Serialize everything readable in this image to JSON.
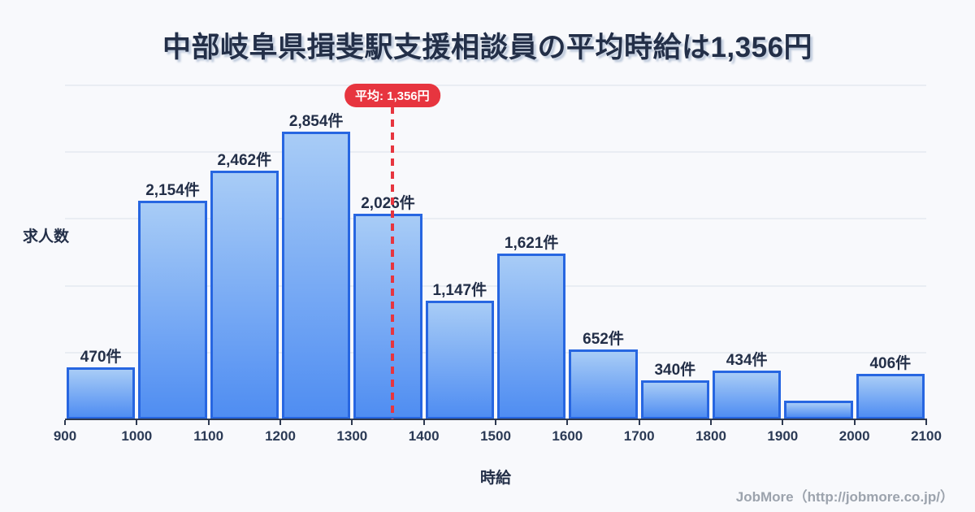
{
  "title": "中部岐阜県揖斐駅支援相談員の平均時給は1,356円",
  "chart_data": {
    "type": "bar",
    "title": "中部岐阜県揖斐駅支援相談員の平均時給は1,356円",
    "xlabel": "時給",
    "ylabel": "求人数",
    "bin_edges": [
      900,
      1000,
      1100,
      1200,
      1300,
      1400,
      1500,
      1600,
      1700,
      1800,
      1900,
      2000,
      2100
    ],
    "x_ticks": [
      "900",
      "1000",
      "1100",
      "1200",
      "1300",
      "1400",
      "1500",
      "1600",
      "1700",
      "1800",
      "1900",
      "2000",
      "2100"
    ],
    "values": [
      470,
      2154,
      2462,
      2854,
      2026,
      1147,
      1621,
      652,
      340,
      434,
      130,
      406
    ],
    "labels": [
      "470件",
      "2,154件",
      "2,462件",
      "2,854件",
      "2,026件",
      "1,147件",
      "1,621件",
      "652件",
      "340件",
      "434件",
      "",
      "406件"
    ],
    "average": 1356,
    "average_label": "平均: 1,356円",
    "xlim": [
      900,
      2100
    ],
    "ylim": [
      0,
      3400
    ],
    "grid": true,
    "legend": false
  },
  "footer": {
    "credit": "JobMore（http://jobmore.co.jp/）"
  },
  "colors": {
    "background": "#f8f9fc",
    "title_text": "#232f48",
    "axis_text": "#2b3a55",
    "bar_border": "#2766e1",
    "bar_fill_top": "#a8ccf6",
    "bar_fill_bottom": "#4f8df2",
    "grid_line": "#e9edf3",
    "axis_line": "#2e3950",
    "average_red": "#e7353f",
    "footer_text": "#9ca3ad"
  }
}
